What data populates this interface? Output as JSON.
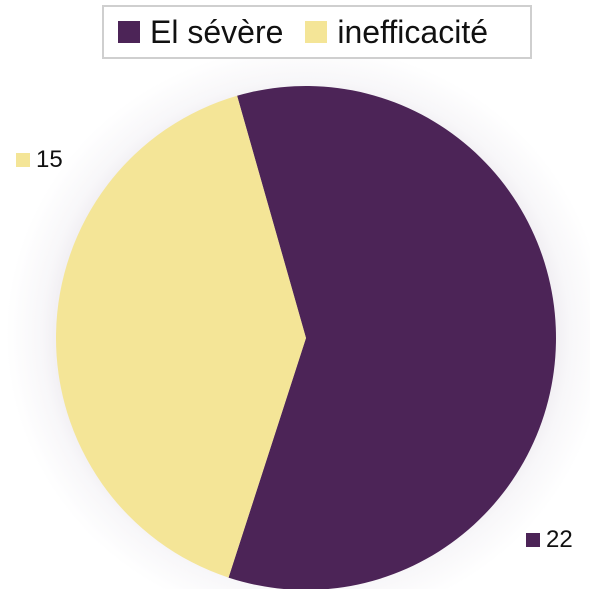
{
  "chart_data": {
    "type": "pie",
    "categories": [
      "El sévère",
      "inefficacité"
    ],
    "values": [
      22,
      15
    ],
    "colors": [
      "#4c2457",
      "#f4e597"
    ],
    "data_labels": [
      "22",
      "15"
    ],
    "legend_position": "top"
  }
}
